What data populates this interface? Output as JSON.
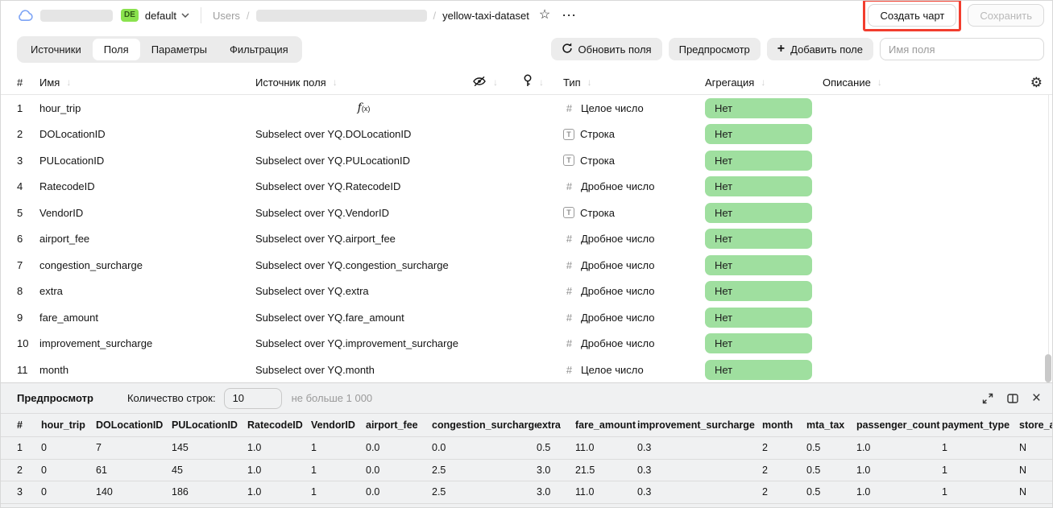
{
  "colors": {
    "aggregation_pill_green": "#9fdf9f",
    "env_badge_green": "#8ae24e",
    "highlight_red": "#f23d2e",
    "preview_background": "#f0f1f2"
  },
  "icons": {
    "star": "☆",
    "more": "⋯",
    "gear": "⚙",
    "sort": "↓",
    "close": "×",
    "plus": "+",
    "formula": "f(x)",
    "hash": "#",
    "string": "T"
  },
  "topbar": {
    "env_badge": "DE",
    "env_name": "default",
    "breadcrumb_root": "Users",
    "breadcrumb_sep": "/",
    "dataset_name": "yellow-taxi-dataset",
    "create_chart_label": "Создать чарт",
    "save_label": "Сохранить"
  },
  "toolbar": {
    "tabs": [
      {
        "name": "sources",
        "label": "Источники",
        "active": false
      },
      {
        "name": "fields",
        "label": "Поля",
        "active": true
      },
      {
        "name": "parameters",
        "label": "Параметры",
        "active": false
      },
      {
        "name": "filtering",
        "label": "Фильтрация",
        "active": false
      }
    ],
    "refresh_label": "Обновить поля",
    "preview_label": "Предпросмотр",
    "add_field_label": "Добавить поле",
    "field_name_placeholder": "Имя поля"
  },
  "fields_table": {
    "headers": {
      "index": "#",
      "name": "Имя",
      "source": "Источник поля",
      "type": "Тип",
      "aggregation": "Агрегация",
      "description": "Описание"
    },
    "rows": [
      {
        "index": "1",
        "name": "hour_trip",
        "source": "",
        "formula": true,
        "type_label": "Целое число",
        "type_kind": "int",
        "aggregation": "Нет"
      },
      {
        "index": "2",
        "name": "DOLocationID",
        "source": "Subselect over YQ.DOLocationID",
        "formula": false,
        "type_label": "Строка",
        "type_kind": "string",
        "aggregation": "Нет"
      },
      {
        "index": "3",
        "name": "PULocationID",
        "source": "Subselect over YQ.PULocationID",
        "formula": false,
        "type_label": "Строка",
        "type_kind": "string",
        "aggregation": "Нет"
      },
      {
        "index": "4",
        "name": "RatecodeID",
        "source": "Subselect over YQ.RatecodeID",
        "formula": false,
        "type_label": "Дробное число",
        "type_kind": "float",
        "aggregation": "Нет"
      },
      {
        "index": "5",
        "name": "VendorID",
        "source": "Subselect over YQ.VendorID",
        "formula": false,
        "type_label": "Строка",
        "type_kind": "string",
        "aggregation": "Нет"
      },
      {
        "index": "6",
        "name": "airport_fee",
        "source": "Subselect over YQ.airport_fee",
        "formula": false,
        "type_label": "Дробное число",
        "type_kind": "float",
        "aggregation": "Нет"
      },
      {
        "index": "7",
        "name": "congestion_surcharge",
        "source": "Subselect over YQ.congestion_surcharge",
        "formula": false,
        "type_label": "Дробное число",
        "type_kind": "float",
        "aggregation": "Нет"
      },
      {
        "index": "8",
        "name": "extra",
        "source": "Subselect over YQ.extra",
        "formula": false,
        "type_label": "Дробное число",
        "type_kind": "float",
        "aggregation": "Нет"
      },
      {
        "index": "9",
        "name": "fare_amount",
        "source": "Subselect over YQ.fare_amount",
        "formula": false,
        "type_label": "Дробное число",
        "type_kind": "float",
        "aggregation": "Нет"
      },
      {
        "index": "10",
        "name": "improvement_surcharge",
        "source": "Subselect over YQ.improvement_surcharge",
        "formula": false,
        "type_label": "Дробное число",
        "type_kind": "float",
        "aggregation": "Нет"
      },
      {
        "index": "11",
        "name": "month",
        "source": "Subselect over YQ.month",
        "formula": false,
        "type_label": "Целое число",
        "type_kind": "int",
        "aggregation": "Нет"
      }
    ]
  },
  "preview": {
    "title": "Предпросмотр",
    "rows_count_label": "Количество строк:",
    "rows_count_value": "10",
    "rows_count_hint": "не больше 1 000",
    "table": {
      "headers": [
        "#",
        "hour_trip",
        "DOLocationID",
        "PULocationID",
        "RatecodeID",
        "VendorID",
        "airport_fee",
        "congestion_surcharge",
        "extra",
        "fare_amount",
        "improvement_surcharge",
        "month",
        "mta_tax",
        "passenger_count",
        "payment_type",
        "store_an"
      ],
      "rows": [
        [
          "1",
          "0",
          "7",
          "145",
          "1.0",
          "1",
          "0.0",
          "0.0",
          "0.5",
          "11.0",
          "0.3",
          "2",
          "0.5",
          "1.0",
          "1",
          "N"
        ],
        [
          "2",
          "0",
          "61",
          "45",
          "1.0",
          "1",
          "0.0",
          "2.5",
          "3.0",
          "21.5",
          "0.3",
          "2",
          "0.5",
          "1.0",
          "1",
          "N"
        ],
        [
          "3",
          "0",
          "140",
          "186",
          "1.0",
          "1",
          "0.0",
          "2.5",
          "3.0",
          "11.0",
          "0.3",
          "2",
          "0.5",
          "1.0",
          "1",
          "N"
        ]
      ]
    }
  }
}
